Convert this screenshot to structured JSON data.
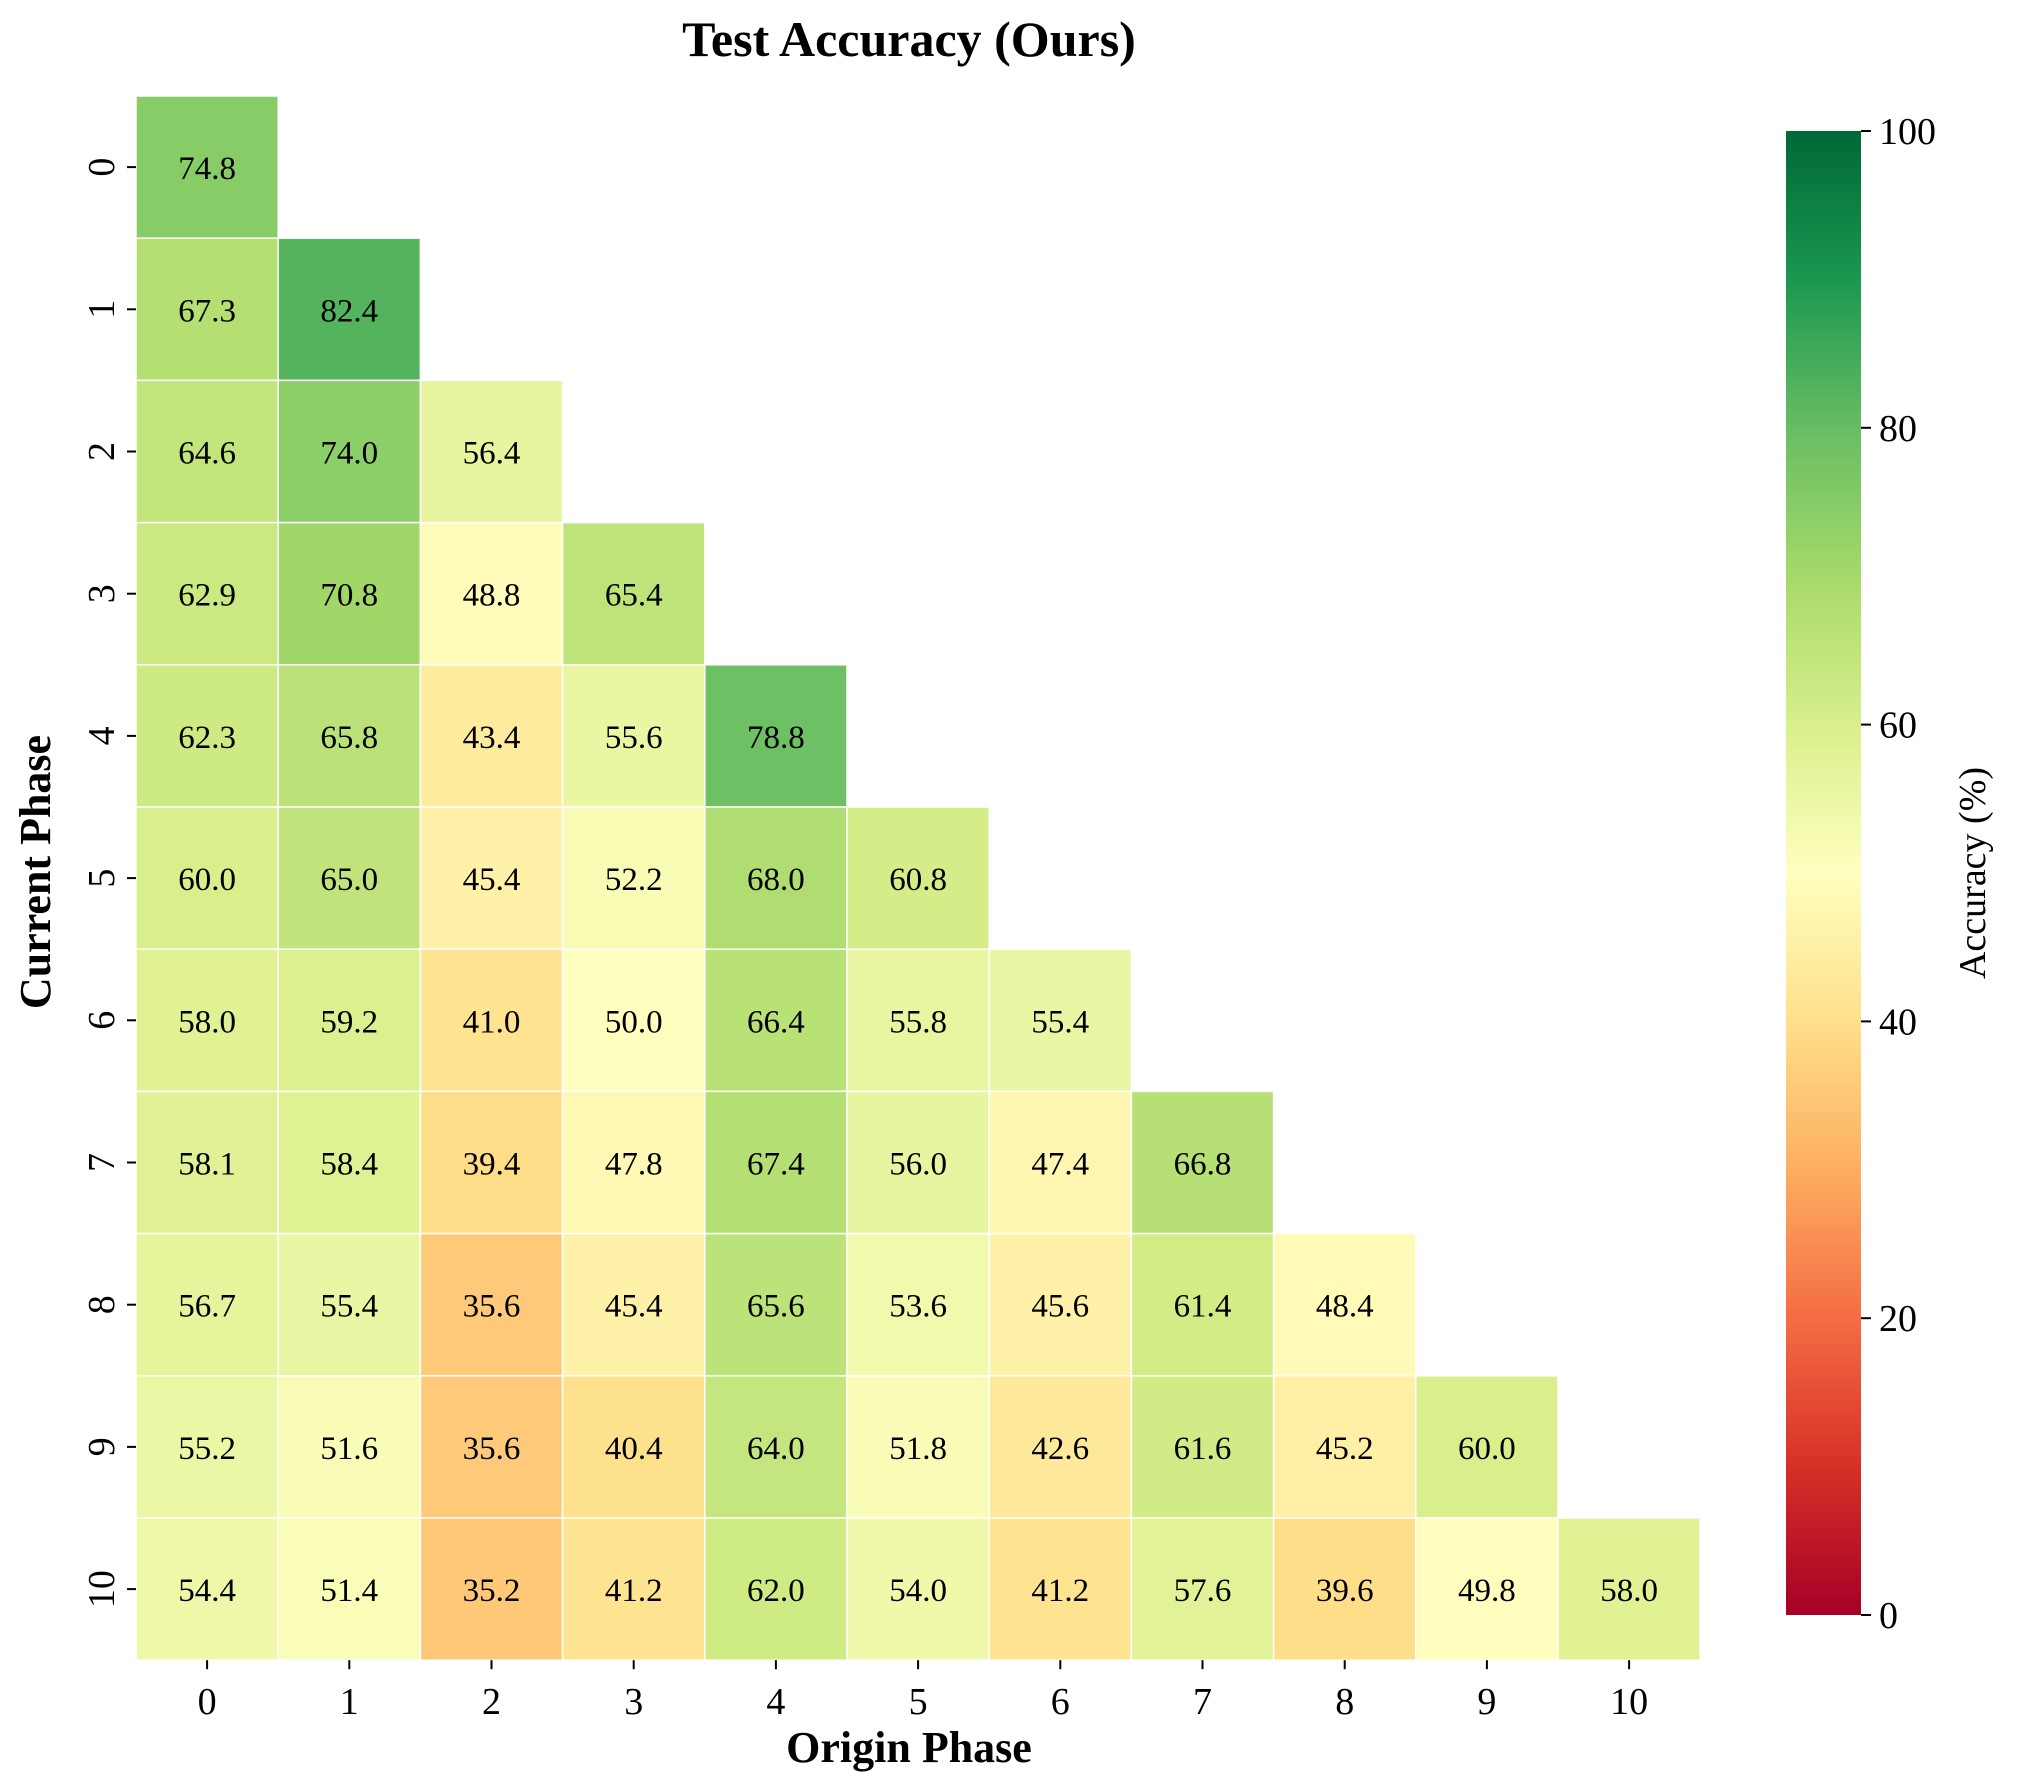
{
  "chart_data": {
    "type": "heatmap",
    "title": "Test Accuracy (Ours)",
    "xlabel": "Origin Phase",
    "ylabel": "Current Phase",
    "x_categories": [
      "0",
      "1",
      "2",
      "3",
      "4",
      "5",
      "6",
      "7",
      "8",
      "9",
      "10"
    ],
    "y_categories": [
      "0",
      "1",
      "2",
      "3",
      "4",
      "5",
      "6",
      "7",
      "8",
      "9",
      "10"
    ],
    "values": [
      [
        74.8
      ],
      [
        67.3,
        82.4
      ],
      [
        64.6,
        74.0,
        56.4
      ],
      [
        62.9,
        70.8,
        48.8,
        65.4
      ],
      [
        62.3,
        65.8,
        43.4,
        55.6,
        78.8
      ],
      [
        60.0,
        65.0,
        45.4,
        52.2,
        68.0,
        60.8
      ],
      [
        58.0,
        59.2,
        41.0,
        50.0,
        66.4,
        55.8,
        55.4
      ],
      [
        58.1,
        58.4,
        39.4,
        47.8,
        67.4,
        56.0,
        47.4,
        66.8
      ],
      [
        56.7,
        55.4,
        35.6,
        45.4,
        65.6,
        53.6,
        45.6,
        61.4,
        48.4
      ],
      [
        55.2,
        51.6,
        35.6,
        40.4,
        64.0,
        51.8,
        42.6,
        61.6,
        45.2,
        60.0
      ],
      [
        54.4,
        51.4,
        35.2,
        41.2,
        62.0,
        54.0,
        41.2,
        57.6,
        39.6,
        49.8,
        58.0
      ]
    ],
    "value_format": "0.1f",
    "mask": "upper-triangle",
    "colormap": "RdYlGn",
    "colormap_stops": [
      "#a50026",
      "#d73027",
      "#f46d43",
      "#fdae61",
      "#fee08b",
      "#ffffbf",
      "#d9ef8b",
      "#a6d96a",
      "#66bd63",
      "#1a9850",
      "#006837"
    ],
    "vmin": 0,
    "vmax": 100,
    "colorbar": {
      "label": "Accuracy (%)",
      "ticks": [
        "0",
        "20",
        "40",
        "60",
        "80",
        "100"
      ],
      "tick_values": [
        0,
        20,
        40,
        60,
        80,
        100
      ]
    }
  }
}
